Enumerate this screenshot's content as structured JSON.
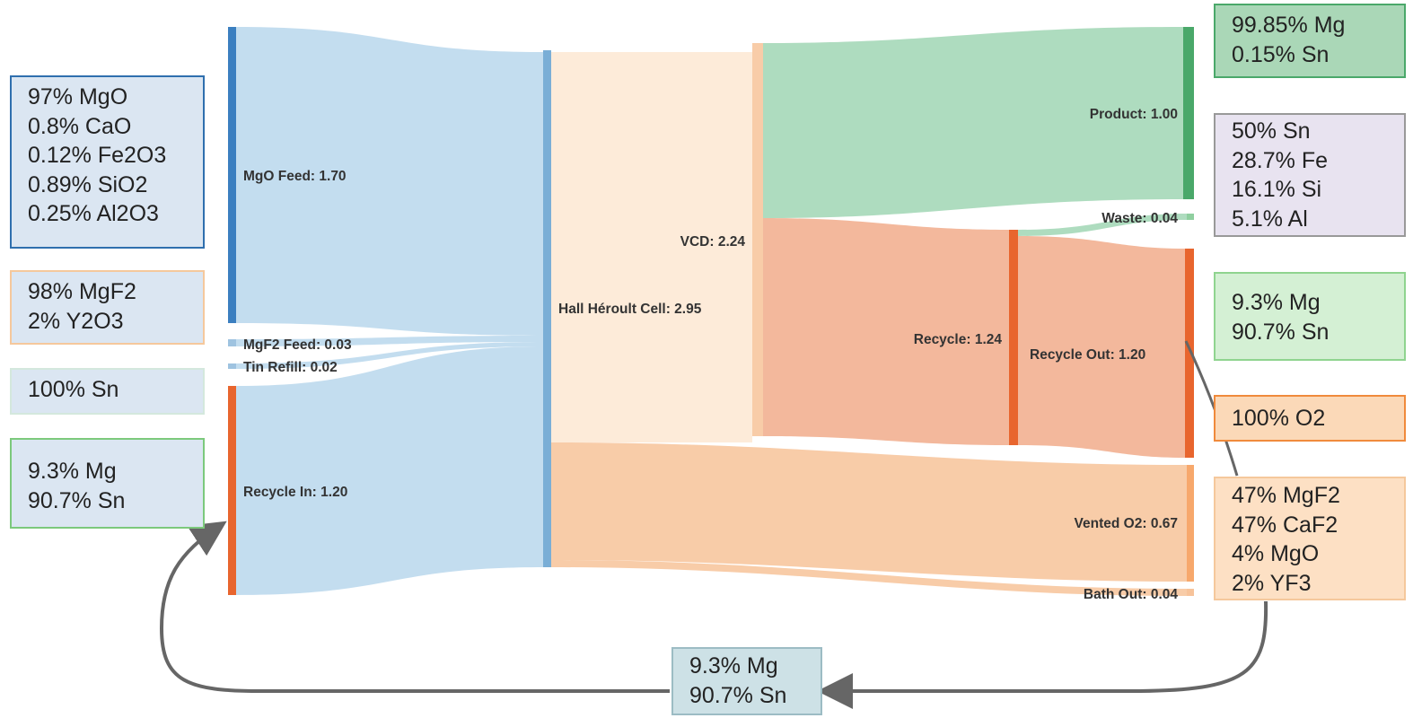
{
  "colors": {
    "feed_blue": "#3b7fc0",
    "flow_blue": "#c3ddef",
    "recycle_orange": "#e8652e",
    "cell_peach": "#fdebd9",
    "vented_peach": "#f8cca8",
    "product_green": "#aedcbf",
    "recycle_salmon": "#f3b89c"
  },
  "nodes": {
    "mgo_feed": "MgO Feed: 1.70",
    "mgf2_feed": "MgF2 Feed: 0.03",
    "tin_refill": "Tin Refill: 0.02",
    "recycle_in": "Recycle In: 1.20",
    "hall_heroult": "Hall Héroult Cell: 2.95",
    "vcd": "VCD: 2.24",
    "product": "Product: 1.00",
    "waste": "Waste: 0.04",
    "recycle": "Recycle: 1.24",
    "recycle_out": "Recycle Out: 1.20",
    "vented_o2": "Vented O2: 0.67",
    "bath_out": "Bath Out: 0.04"
  },
  "composition_boxes": {
    "mgo_feed": [
      "97% MgO",
      "0.8% CaO",
      "0.12% Fe2O3",
      "0.89% SiO2",
      "0.25% Al2O3"
    ],
    "mgf2_feed": [
      "98% MgF2",
      "2% Y2O3"
    ],
    "tin_refill": [
      "100% Sn"
    ],
    "recycle_in": [
      "9.3% Mg",
      "90.7% Sn"
    ],
    "product": [
      "99.85% Mg",
      "0.15% Sn"
    ],
    "waste": [
      "50% Sn",
      "28.7% Fe",
      "16.1% Si",
      "5.1% Al"
    ],
    "recycle_out": [
      "9.3% Mg",
      "90.7% Sn"
    ],
    "vented_o2": [
      "100% O2"
    ],
    "bath_out": [
      "47% MgF2",
      "47% CaF2",
      "4% MgO",
      "2% YF3"
    ],
    "return_loop": [
      "9.3% Mg",
      "90.7% Sn"
    ]
  }
}
